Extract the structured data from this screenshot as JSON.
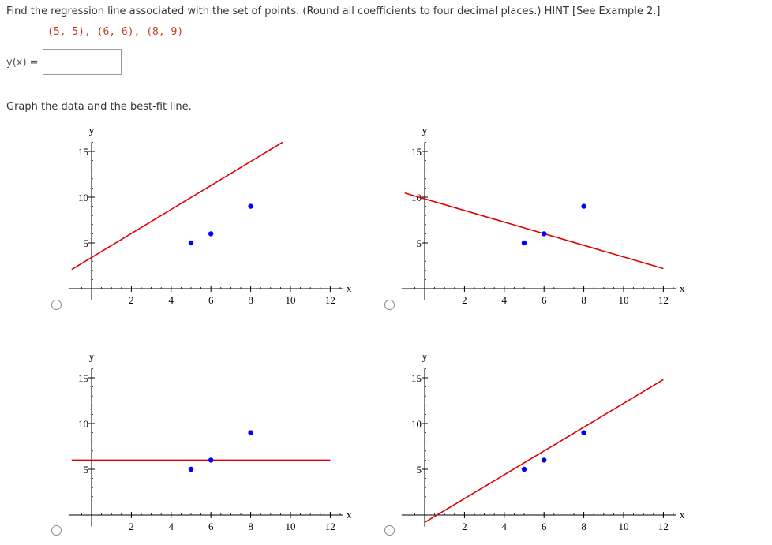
{
  "question": {
    "prompt": "Find the regression line associated with the set of points. (Round all coefficients to four decimal places.) HINT [See Example 2.]",
    "points_text": "(5, 5), (6, 6), (8, 9)"
  },
  "answer": {
    "label": "y(x) =",
    "value": "",
    "placeholder": ""
  },
  "graph_prompt": "Graph the data and the best-fit line.",
  "chart_data": [
    {
      "option": 1,
      "type": "scatter",
      "xlabel": "x",
      "ylabel": "y",
      "xlim": [
        -1,
        12.5
      ],
      "ylim": [
        -1,
        16
      ],
      "xticks": [
        2,
        4,
        6,
        8,
        10,
        12
      ],
      "yticks": [
        5,
        10,
        15
      ],
      "points": [
        [
          5,
          5
        ],
        [
          6,
          6
        ],
        [
          8,
          9
        ]
      ],
      "line": {
        "x1": -1,
        "y1": 2.1,
        "x2": 9.6,
        "y2": 16
      }
    },
    {
      "option": 2,
      "type": "scatter",
      "xlabel": "x",
      "ylabel": "y",
      "xlim": [
        -1,
        12.5
      ],
      "ylim": [
        -1,
        16
      ],
      "xticks": [
        2,
        4,
        6,
        8,
        10,
        12
      ],
      "yticks": [
        5,
        10,
        15
      ],
      "points": [
        [
          5,
          5
        ],
        [
          6,
          6
        ],
        [
          8,
          9
        ]
      ],
      "line": {
        "x1": -1,
        "y1": 10.45,
        "x2": 12,
        "y2": 2.2
      }
    },
    {
      "option": 3,
      "type": "scatter",
      "xlabel": "x",
      "ylabel": "y",
      "xlim": [
        -1,
        12.5
      ],
      "ylim": [
        -1,
        16
      ],
      "xticks": [
        2,
        4,
        6,
        8,
        10,
        12
      ],
      "yticks": [
        5,
        10,
        15
      ],
      "points": [
        [
          5,
          5
        ],
        [
          6,
          6
        ],
        [
          8,
          9
        ]
      ],
      "line": {
        "x1": -1,
        "y1": 6,
        "x2": 12,
        "y2": 6
      }
    },
    {
      "option": 4,
      "type": "scatter",
      "xlabel": "x",
      "ylabel": "y",
      "xlim": [
        -1,
        12.5
      ],
      "ylim": [
        -1,
        16
      ],
      "xticks": [
        2,
        4,
        6,
        8,
        10,
        12
      ],
      "yticks": [
        5,
        10,
        15
      ],
      "points": [
        [
          5,
          5
        ],
        [
          6,
          6
        ],
        [
          8,
          9
        ]
      ],
      "line": {
        "x1": 0,
        "y1": -0.8,
        "x2": 12,
        "y2": 14.8
      }
    }
  ],
  "colors": {
    "points": "#0000ff",
    "line": "#e00000",
    "axis": "#000000",
    "points_text": "#c23b22"
  }
}
